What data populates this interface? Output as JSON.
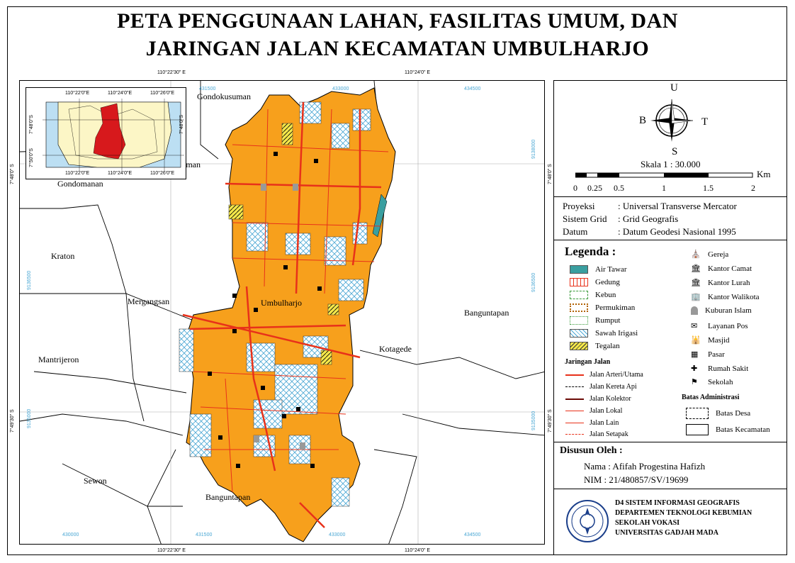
{
  "title_line1": "PETA PENGGUNAAN LAHAN, FASILITAS UMUM, DAN",
  "title_line2": "JARINGAN JALAN KECAMATAN UMBULHARJO",
  "map": {
    "top_coords": [
      "110°22'30\" E",
      "110°24'0\" E"
    ],
    "bottom_coords": [
      "110°22'30\" E",
      "110°24'0\" E"
    ],
    "left_coords": [
      "7°48'0\" S",
      "7°49'30\" S"
    ],
    "right_coords": [
      "7°48'0\" S",
      "7°49'30\" S"
    ],
    "grid_top": [
      "431500",
      "433000",
      "434500"
    ],
    "grid_bottom": [
      "430000",
      "431500",
      "433000",
      "434500"
    ],
    "grid_left": [
      "9136500",
      "9135000"
    ],
    "grid_right": [
      "9138000",
      "9136500",
      "9135000"
    ],
    "place_labels": [
      "Gondokusuman",
      "Gondomanan",
      "Kraton",
      "Mergangsan",
      "Umbulharjo",
      "Banguntapan",
      "Kotagede",
      "Mantrijeron",
      "Sewon",
      "Banguntapan",
      "aman"
    ],
    "inset": {
      "top_coords": [
        "110°22'0\"E",
        "110°24'0\"E",
        "110°26'0\"E"
      ],
      "bottom_coords": [
        "110°22'0\"E",
        "110°24'0\"E",
        "110°26'0\"E"
      ],
      "left_coords": [
        "7°48'0\"S",
        "7°50'0\"S"
      ],
      "right_coords": [
        "7°48'0\"S"
      ]
    }
  },
  "north": {
    "u": "U",
    "b": "B",
    "t": "T",
    "s": "S"
  },
  "scale": {
    "label": "Skala 1 : 30.000",
    "unit": "Km",
    "ticks": [
      "0",
      "0.25",
      "0.5",
      "1",
      "1.5",
      "2"
    ]
  },
  "projection": {
    "rows": [
      {
        "k": "Proyeksi",
        "v": ": Universal Transverse Mercator"
      },
      {
        "k": "Sistem Grid",
        "v": ": Grid Geografis"
      },
      {
        "k": "Datum",
        "v": ": Datum Geodesi Nasional 1995"
      }
    ]
  },
  "legend": {
    "title": "Legenda :",
    "landuse": [
      {
        "label": "Air Tawar",
        "color": "#3a9fa0"
      },
      {
        "label": "Gedung",
        "color": "#ffffff"
      },
      {
        "label": "Kebun",
        "color": "#ffffff"
      },
      {
        "label": "Permukiman",
        "color": "#f7a01c"
      },
      {
        "label": "Rumput",
        "color": "#ffffff"
      },
      {
        "label": "Sawah Irigasi",
        "color": "#cfe9f5"
      },
      {
        "label": "Tegalan",
        "color": "#f3e64a"
      }
    ],
    "roads_title": "Jaringan Jalan",
    "roads": [
      {
        "label": "Jalan Arteri/Utama",
        "color": "#e8311a"
      },
      {
        "label": "Jalan Kereta Api",
        "color": "#000000"
      },
      {
        "label": "Jalan Kolektor",
        "color": "#6b0a06"
      },
      {
        "label": "Jalan Lokal",
        "color": "#e8311a"
      },
      {
        "label": "Jalan Lain",
        "color": "#e8311a"
      },
      {
        "label": "Jalan Setapak",
        "color": "#e8311a"
      }
    ],
    "facilities": [
      {
        "label": "Gereja",
        "icon": "church-icon"
      },
      {
        "label": "Kantor Camat",
        "icon": "office-icon"
      },
      {
        "label": "Kantor Lurah",
        "icon": "office-icon"
      },
      {
        "label": "Kantor Walikota",
        "icon": "office-icon"
      },
      {
        "label": "Kuburan Islam",
        "icon": "grave-icon"
      },
      {
        "label": "Layanan Pos",
        "icon": "post-icon"
      },
      {
        "label": "Masjid",
        "icon": "mosque-icon"
      },
      {
        "label": "Pasar",
        "icon": "market-icon"
      },
      {
        "label": "Rumah Sakit",
        "icon": "hospital-icon"
      },
      {
        "label": "Sekolah",
        "icon": "school-icon"
      }
    ],
    "admin_title": "Batas Administrasi",
    "admin": [
      {
        "label": "Batas Desa"
      },
      {
        "label": "Batas Kecamatan"
      }
    ]
  },
  "author": {
    "title": "Disusun Oleh :",
    "name": "Nama : Afifah Progestina Hafizh",
    "nim": "NIM : 21/480857/SV/19699"
  },
  "institution": {
    "line1": "D4 SISTEM INFORMASI GEOGRAFIS",
    "line2": "DEPARTEMEN TEKNOLOGI KEBUMIAN",
    "line3": "SEKOLAH VOKASI",
    "line4": "UNIVERSITAS GADJAH MADA"
  }
}
